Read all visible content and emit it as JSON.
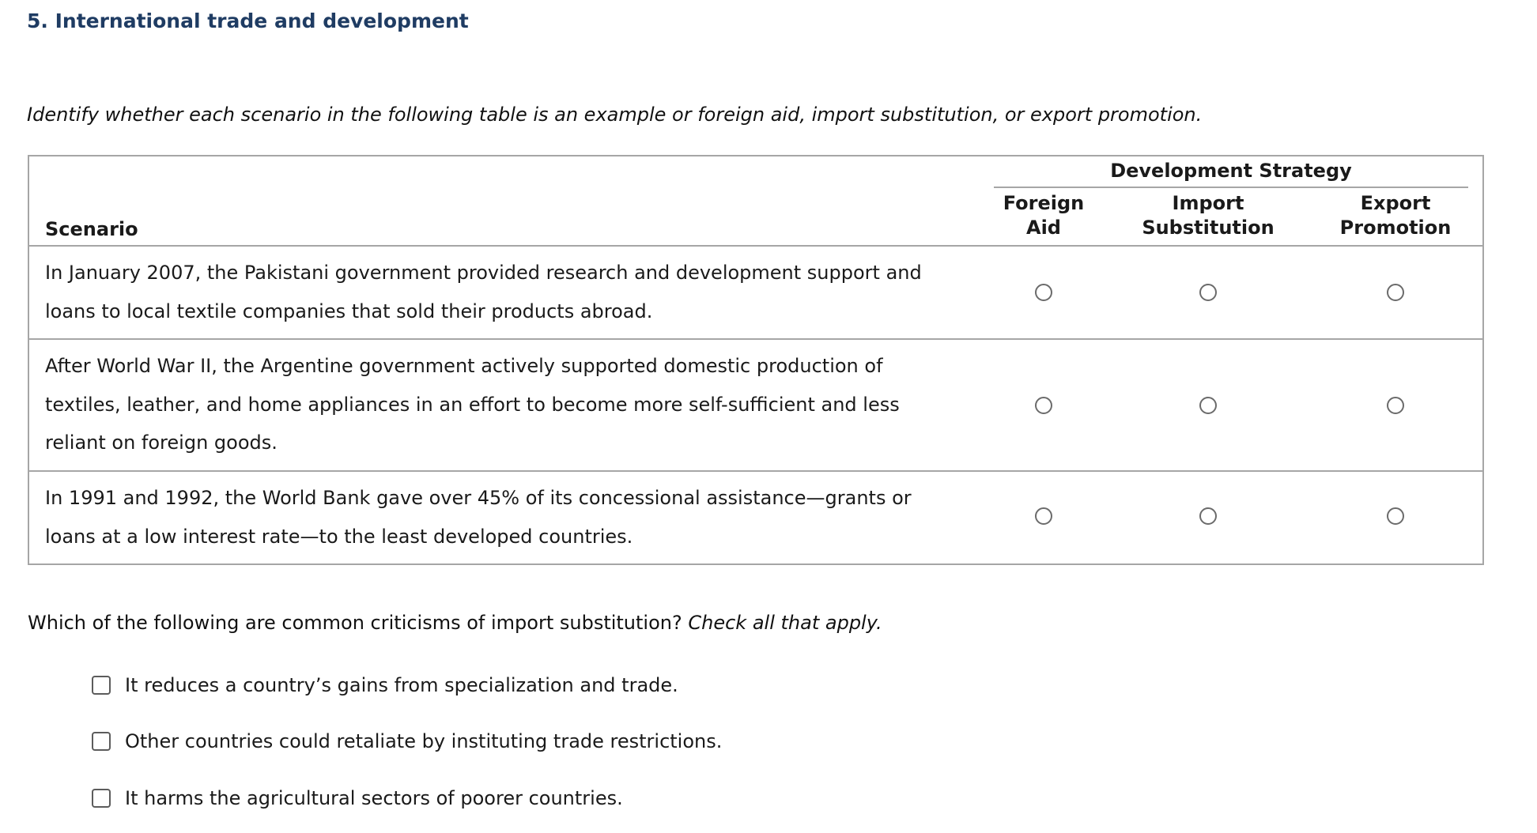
{
  "page_title": "5. International trade and development",
  "instructions": "Identify whether each scenario in the following table is an example or foreign aid, import substitution, or export promotion.",
  "table": {
    "scenario_header": "Scenario",
    "group_header": "Development Strategy",
    "columns": [
      {
        "line1": "Foreign",
        "line2": "Aid"
      },
      {
        "line1": "Import",
        "line2": "Substitution"
      },
      {
        "line1": "Export",
        "line2": "Promotion"
      }
    ],
    "rows": [
      {
        "scenario": "In January 2007, the Pakistani government provided research and development support and loans to local textile companies that sold their products abroad."
      },
      {
        "scenario": "After World War II, the Argentine government actively supported domestic production of textiles, leather, and home appliances in an effort to become more self-sufficient and less reliant on foreign goods."
      },
      {
        "scenario": "In 1991 and 1992, the World Bank gave over 45% of its concessional assistance—grants or loans at a low interest rate—to the least developed countries."
      }
    ]
  },
  "question": {
    "text": "Which of the following are common criticisms of import substitution?",
    "hint": "Check all that apply."
  },
  "options": [
    {
      "label": "It reduces a country’s gains from specialization and trade.",
      "checked": false
    },
    {
      "label": "Other countries could retaliate by instituting trade restrictions.",
      "checked": false
    },
    {
      "label": "It harms the agricultural sectors of poorer countries.",
      "checked": false
    }
  ]
}
